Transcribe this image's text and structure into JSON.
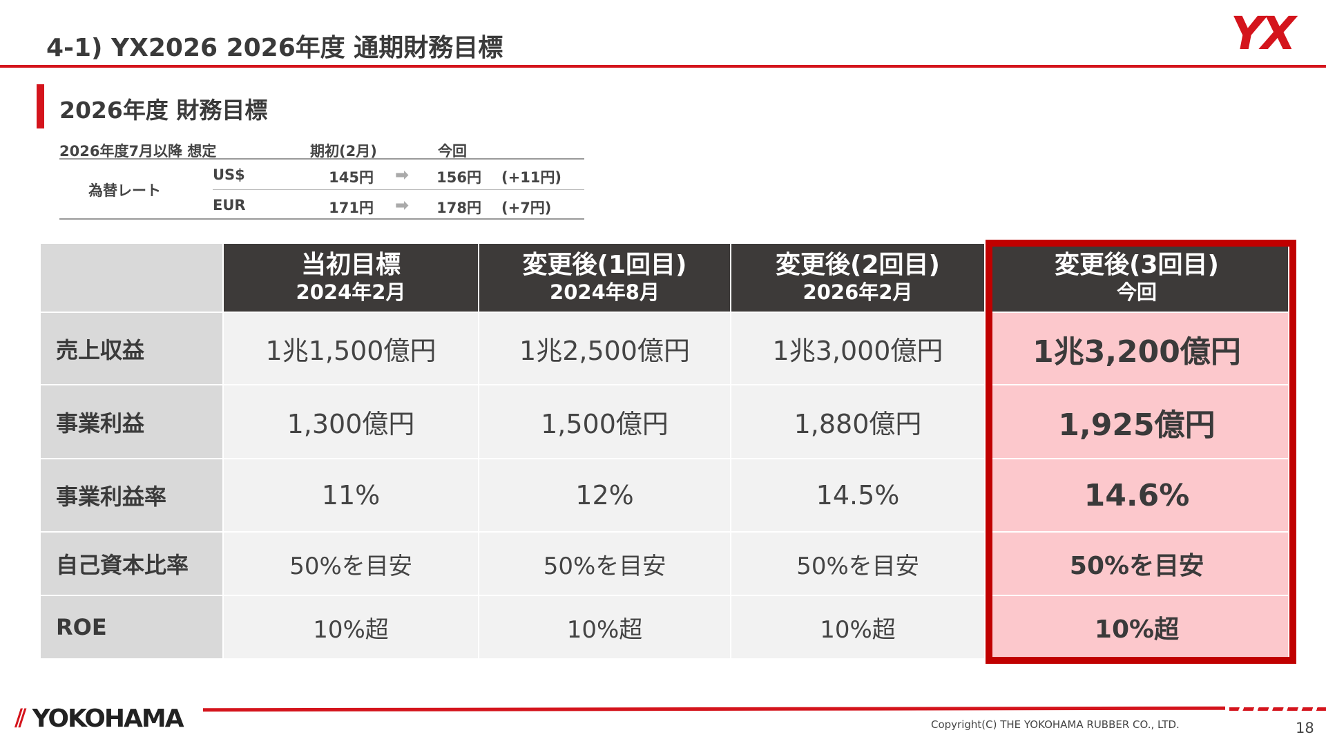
{
  "header": {
    "title": "4-1) YX2026 2026年度 通期財務目標",
    "logo": "YX"
  },
  "section": {
    "title": "2026年度 財務目標"
  },
  "fx": {
    "headers": [
      "2026年度7月以降 想定",
      "期初(2月)",
      "今回"
    ],
    "label": "為替レート",
    "rows": [
      [
        "US$",
        "145円",
        "156円",
        "(+11円)"
      ],
      [
        "EUR",
        "171円",
        "178円",
        "(+7円)"
      ]
    ]
  },
  "table": {
    "headers": [
      [
        "当初目標",
        "2024年2月"
      ],
      [
        "変更後(1回目)",
        "2024年8月"
      ],
      [
        "変更後(2回目)",
        "2026年2月"
      ],
      [
        "変更後(3回目)",
        "今回"
      ]
    ],
    "rows": [
      [
        "売上収益",
        "1兆1,500億円",
        "1兆2,500億円",
        "1兆3,000億円",
        "1兆3,200億円"
      ],
      [
        "事業利益",
        "1,300億円",
        "1,500億円",
        "1,880億円",
        "1,925億円"
      ],
      [
        "事業利益率",
        "11%",
        "12%",
        "14.5%",
        "14.6%"
      ],
      [
        "自己資本比率",
        "50%を目安",
        "50%を目安",
        "50%を目安",
        "50%を目安"
      ],
      [
        "ROE",
        "10%超",
        "10%超",
        "10%超",
        "10%超"
      ]
    ]
  },
  "footer": {
    "brand": "YOKOHAMA",
    "copyright": "Copyright(C) THE YOKOHAMA RUBBER CO., LTD.",
    "page": "18"
  }
}
